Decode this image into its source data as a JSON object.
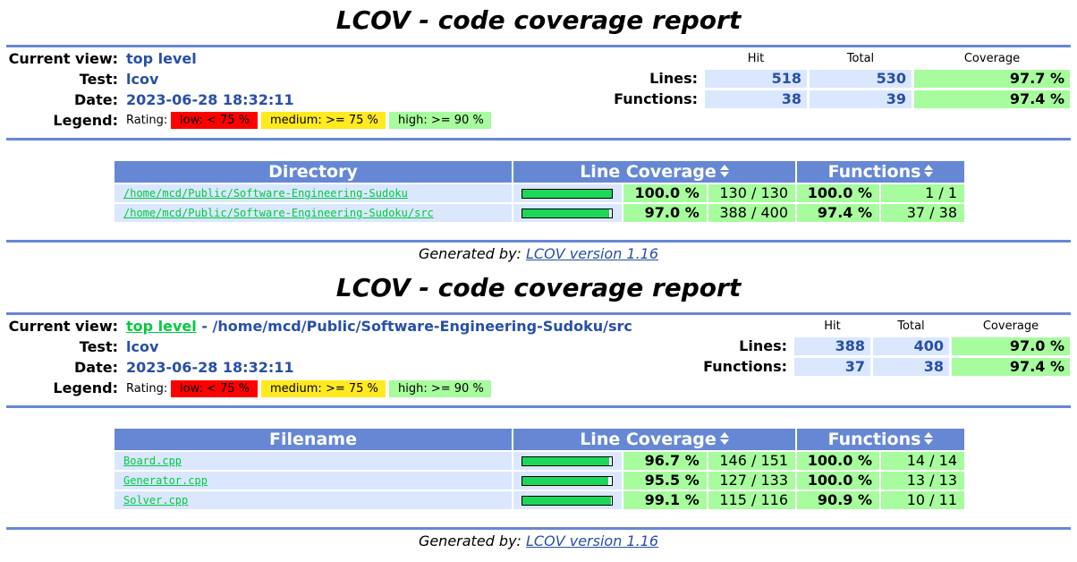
{
  "reports": [
    {
      "title": "LCOV - code coverage report",
      "current_view_label": "Current view:",
      "current_view_link": "top level",
      "current_view_path": "",
      "test_label": "Test:",
      "test_value": "lcov",
      "date_label": "Date:",
      "date_value": "2023-06-28 18:32:11",
      "legend_label": "Legend:",
      "legend_rating": "Rating:",
      "legend_low": "low: < 75 %",
      "legend_medium": "medium: >= 75 %",
      "legend_high": "high: >= 90 %",
      "summary": {
        "hit_header": "Hit",
        "total_header": "Total",
        "coverage_header": "Coverage",
        "lines_label": "Lines:",
        "lines_hit": "518",
        "lines_total": "530",
        "lines_cov": "97.7 %",
        "functions_label": "Functions:",
        "functions_hit": "38",
        "functions_total": "39",
        "functions_cov": "97.4 %"
      },
      "table": {
        "col1": "Directory",
        "col2": "Line Coverage",
        "col3": "Functions",
        "rows": [
          {
            "name": "/home/mcd/Public/Software-Engineering-Sudoku",
            "fill": 1.0,
            "line_pct": "100.0 %",
            "line_cnt": "130 / 130",
            "fn_pct": "100.0 %",
            "fn_cnt": "1 / 1"
          },
          {
            "name": "/home/mcd/Public/Software-Engineering-Sudoku/src",
            "fill": 0.97,
            "line_pct": "97.0 %",
            "line_cnt": "388 / 400",
            "fn_pct": "97.4 %",
            "fn_cnt": "37 / 38"
          }
        ]
      },
      "generated_label": "Generated by:",
      "generated_link": "LCOV version 1.16"
    },
    {
      "title": "LCOV - code coverage report",
      "current_view_label": "Current view:",
      "current_view_link": "top level",
      "current_view_path": "- /home/mcd/Public/Software-Engineering-Sudoku/src",
      "test_label": "Test:",
      "test_value": "lcov",
      "date_label": "Date:",
      "date_value": "2023-06-28 18:32:11",
      "legend_label": "Legend:",
      "legend_rating": "Rating:",
      "legend_low": "low: < 75 %",
      "legend_medium": "medium: >= 75 %",
      "legend_high": "high: >= 90 %",
      "summary": {
        "hit_header": "Hit",
        "total_header": "Total",
        "coverage_header": "Coverage",
        "lines_label": "Lines:",
        "lines_hit": "388",
        "lines_total": "400",
        "lines_cov": "97.0 %",
        "functions_label": "Functions:",
        "functions_hit": "37",
        "functions_total": "38",
        "functions_cov": "97.4 %"
      },
      "table": {
        "col1": "Filename",
        "col2": "Line Coverage",
        "col3": "Functions",
        "rows": [
          {
            "name": "Board.cpp",
            "fill": 0.967,
            "line_pct": "96.7 %",
            "line_cnt": "146 / 151",
            "fn_pct": "100.0 %",
            "fn_cnt": "14 / 14"
          },
          {
            "name": "Generator.cpp",
            "fill": 0.955,
            "line_pct": "95.5 %",
            "line_cnt": "127 / 133",
            "fn_pct": "100.0 %",
            "fn_cnt": "13 / 13"
          },
          {
            "name": "Solver.cpp",
            "fill": 0.991,
            "line_pct": "99.1 %",
            "line_cnt": "115 / 116",
            "fn_pct": "90.9 %",
            "fn_cnt": "10 / 11"
          }
        ]
      },
      "generated_label": "Generated by:",
      "generated_link": "LCOV version 1.16"
    }
  ]
}
